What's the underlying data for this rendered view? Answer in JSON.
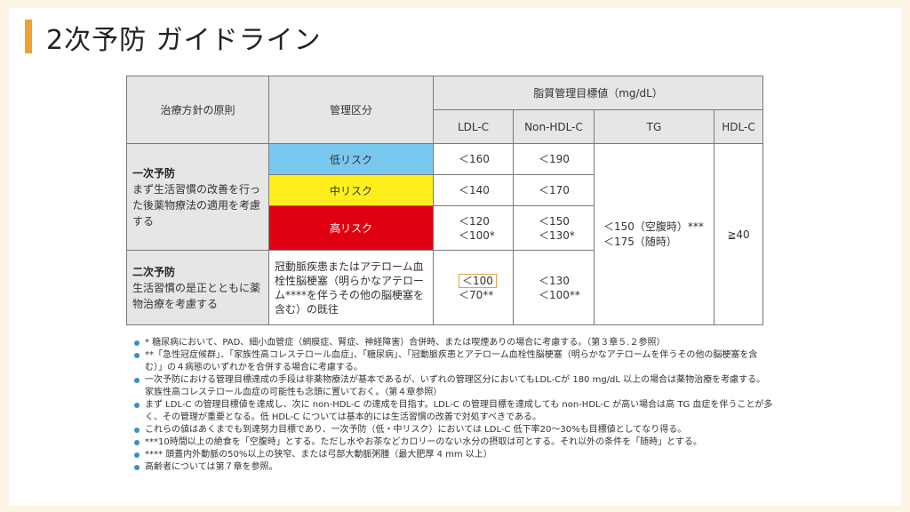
{
  "title": "2次予防 ガイドライン",
  "table": {
    "col_principle": "治療方針の原則",
    "col_category": "管理区分",
    "col_target": "脂質管理目標値（mg/dL）",
    "col_ldl": "LDL-C",
    "col_nonhdl": "Non-HDL-C",
    "col_tg": "TG",
    "col_hdl": "HDL-C",
    "primary": {
      "heading": "一次予防",
      "text": "まず生活習慣の改善を行った後薬物療法の適用を考慮する",
      "rows": [
        {
          "category": "低リスク",
          "ldl": "＜160",
          "nonhdl": "＜190"
        },
        {
          "category": "中リスク",
          "ldl": "＜140",
          "nonhdl": "＜170"
        },
        {
          "category": "高リスク",
          "ldl": "＜120",
          "ldl2": "＜100*",
          "nonhdl": "＜150",
          "nonhdl2": "＜130*"
        }
      ]
    },
    "tg_line1": "＜150（空腹時）***",
    "tg_line2": "＜175（随時）",
    "hdl": "≧40",
    "secondary": {
      "heading": "二次予防",
      "text": "生活習慣の是正とともに薬物治療を考慮する",
      "category": "冠動脈疾患またはアテローム血栓性脳梗塞（明らかなアテローム****を伴うその他の脳梗塞を含む）の既往",
      "ldl": "＜100",
      "ldl2": "＜70**",
      "nonhdl": "＜130",
      "nonhdl2": "＜100**"
    }
  },
  "notes": [
    "* 糖尿病において、PAD、細小血管症（網膜症、腎症、神経障害）合併時、または喫煙ありの場合に考慮する。（第３章５.２参照）",
    "**「急性冠症候群」、「家族性高コレステロール血症」、「糖尿病」、「冠動脈疾患とアテローム血栓性脳梗塞（明らかなアテロームを伴うその他の脳梗塞を含む）」の４病態のいずれかを合併する場合に考慮する。",
    "一次予防における管理目標達成の手段は非薬物療法が基本であるが、いずれの管理区分においてもLDL-Cが 180 mg/dL 以上の場合は薬物治療を考慮する。家族性高コレステロール血症の可能性も念頭に置いておく。（第４章参照）",
    "まず LDL-C の管理目標値を達成し、次に non-HDL-C の達成を目指す。LDL-C の管理目標を達成しても non-HDL-C が高い場合は高 TG 血症を伴うことが多く、その管理が重要となる。低 HDL-C については基本的には生活習慣の改善で対処すべきである。",
    "これらの値はあくまでも到達努力目標であり、一次予防（低・中リスク）においては LDL-C 低下率20～30%も目標値としてなり得る。",
    "***10時間以上の絶食を「空腹時」とする。ただし水やお茶などカロリーのない水分の摂取は可とする。それ以外の条件を「随時」とする。",
    "**** 頭蓋内外動脈の50%以上の狭窄、または弓部大動脈粥腫（最大肥厚 4 mm 以上）",
    "高齢者については第７章を参照。"
  ],
  "colors": {
    "low_risk": "#79c8ef",
    "mid_risk": "#ffef1e",
    "high_risk": "#e10012",
    "accent": "#f0a030",
    "bullet": "#3a8fc8"
  }
}
